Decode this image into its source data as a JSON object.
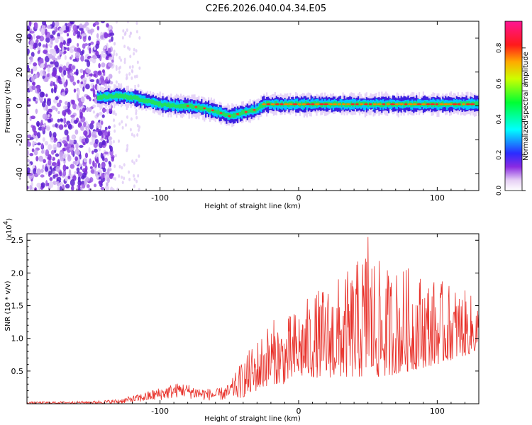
{
  "title": "C2E6.2026.040.04.34.E05",
  "chart_data": [
    {
      "type": "heatmap",
      "title": "C2E6.2026.040.04.34.E05",
      "xlabel": "Height of straight line (km)",
      "ylabel": "Frequency (Hz)",
      "xlim": [
        -196,
        130
      ],
      "ylim": [
        -50,
        50
      ],
      "x_ticks": [
        "-100",
        "0",
        "100"
      ],
      "y_ticks": [
        "-40",
        "-20",
        "0",
        "20",
        "40"
      ],
      "colorbar": {
        "label": "Normalized spectral amplitude",
        "range": [
          0,
          0.95
        ],
        "ticks": [
          "0.0",
          "0.2",
          "0.4",
          "0.6",
          "0.8"
        ]
      },
      "ridge_center_hz": [
        {
          "x": -145,
          "y": 5
        },
        {
          "x": -130,
          "y": 6
        },
        {
          "x": -120,
          "y": 5
        },
        {
          "x": -110,
          "y": 3
        },
        {
          "x": -100,
          "y": 1
        },
        {
          "x": -90,
          "y": 0
        },
        {
          "x": -80,
          "y": 0
        },
        {
          "x": -70,
          "y": -1
        },
        {
          "x": -60,
          "y": -3
        },
        {
          "x": -50,
          "y": -6
        },
        {
          "x": -45,
          "y": -5
        },
        {
          "x": -40,
          "y": -4
        },
        {
          "x": -35,
          "y": -3
        },
        {
          "x": -30,
          "y": -2
        },
        {
          "x": -25,
          "y": 1
        },
        {
          "x": -10,
          "y": 1
        },
        {
          "x": 0,
          "y": 1
        },
        {
          "x": 50,
          "y": 1
        },
        {
          "x": 100,
          "y": 1
        },
        {
          "x": 130,
          "y": 1
        }
      ]
    },
    {
      "type": "line",
      "xlabel": "Height of straight line (km)",
      "ylabel": "SNR (10 * v/v)",
      "y_scale_label": "(x10",
      "y_scale_exponent": "4",
      "y_scale_close": ")",
      "xlim": [
        -196,
        130
      ],
      "ylim": [
        0,
        2.6
      ],
      "x_ticks": [
        "-100",
        "0",
        "100"
      ],
      "y_ticks": [
        "0.5",
        "1.0",
        "1.5",
        "2.0",
        "2.5"
      ],
      "series": [
        {
          "name": "SNR",
          "color": "#e8312a",
          "envelope": [
            {
              "x": -196,
              "lo": 0.0,
              "hi": 0.03
            },
            {
              "x": -150,
              "lo": 0.0,
              "hi": 0.04
            },
            {
              "x": -130,
              "lo": 0.0,
              "hi": 0.07
            },
            {
              "x": -115,
              "lo": 0.02,
              "hi": 0.15
            },
            {
              "x": -100,
              "lo": 0.05,
              "hi": 0.25
            },
            {
              "x": -85,
              "lo": 0.1,
              "hi": 0.33
            },
            {
              "x": -70,
              "lo": 0.05,
              "hi": 0.25
            },
            {
              "x": -60,
              "lo": 0.05,
              "hi": 0.22
            },
            {
              "x": -50,
              "lo": 0.05,
              "hi": 0.3
            },
            {
              "x": -40,
              "lo": 0.1,
              "hi": 0.7
            },
            {
              "x": -30,
              "lo": 0.2,
              "hi": 1.0
            },
            {
              "x": -20,
              "lo": 0.3,
              "hi": 1.3
            },
            {
              "x": -10,
              "lo": 0.3,
              "hi": 1.3
            },
            {
              "x": 0,
              "lo": 0.4,
              "hi": 1.5
            },
            {
              "x": 10,
              "lo": 0.4,
              "hi": 1.7
            },
            {
              "x": 25,
              "lo": 0.4,
              "hi": 1.9
            },
            {
              "x": 40,
              "lo": 0.4,
              "hi": 2.1
            },
            {
              "x": 50,
              "lo": 0.4,
              "hi": 2.55
            },
            {
              "x": 60,
              "lo": 0.4,
              "hi": 2.1
            },
            {
              "x": 80,
              "lo": 0.5,
              "hi": 2.1
            },
            {
              "x": 100,
              "lo": 0.6,
              "hi": 1.9
            },
            {
              "x": 115,
              "lo": 0.7,
              "hi": 1.8
            },
            {
              "x": 130,
              "lo": 0.8,
              "hi": 1.6
            }
          ],
          "peak": {
            "x": 50,
            "y": 2.55
          }
        }
      ]
    }
  ]
}
